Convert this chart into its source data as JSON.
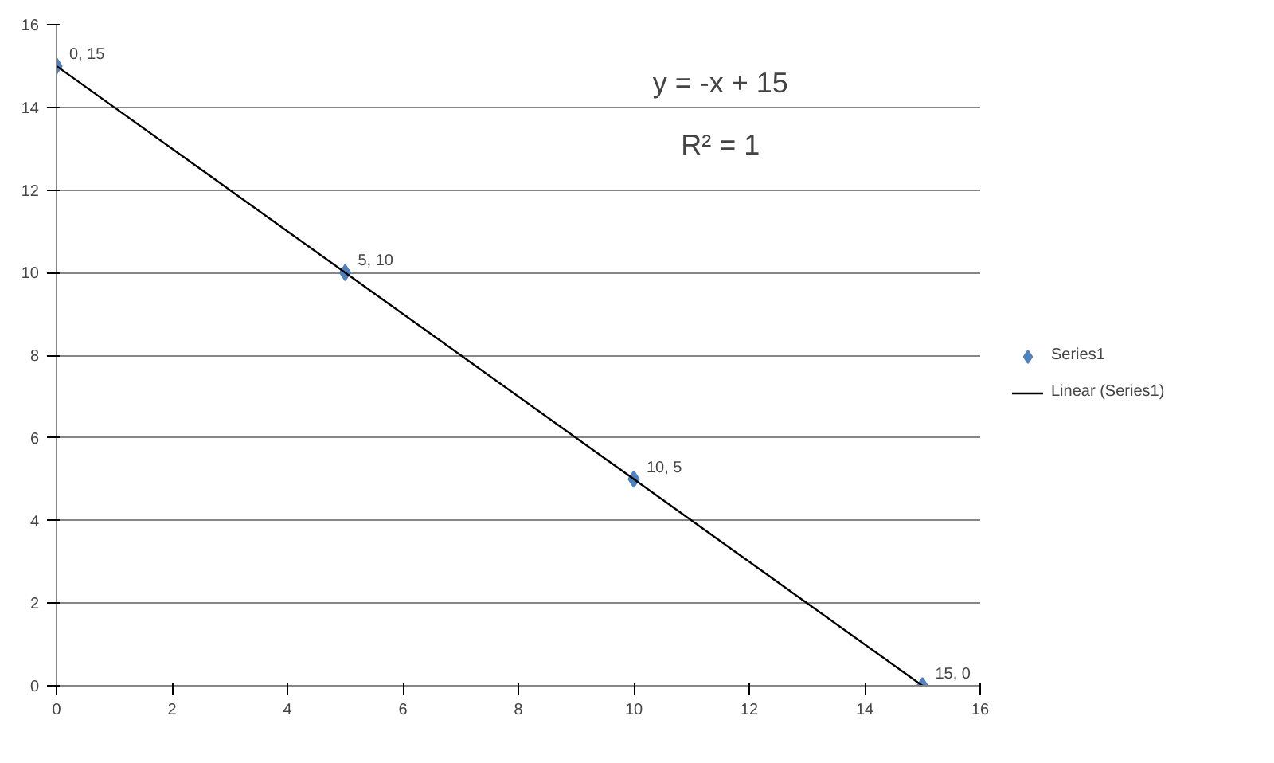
{
  "chart_data": {
    "type": "scatter",
    "series": [
      {
        "name": "Series1",
        "color": "#4f81bd",
        "marker": "diamond",
        "x": [
          0,
          5,
          10,
          15
        ],
        "values": [
          15,
          10,
          5,
          0
        ],
        "value_labels": [
          "0, 15",
          "5, 10",
          "10, 5",
          "15, 0"
        ]
      },
      {
        "name": "Linear (Series1)",
        "type": "line",
        "color": "#000000",
        "line_style": "solid",
        "x": [
          0,
          15
        ],
        "values": [
          15,
          0
        ]
      }
    ],
    "annotations": [
      "y = -x + 15",
      "R² = 1"
    ],
    "xlim": [
      0,
      16
    ],
    "ylim": [
      0,
      16
    ],
    "xticks": [
      0,
      2,
      4,
      6,
      8,
      10,
      12,
      14,
      16
    ],
    "yticks": [
      0,
      2,
      4,
      6,
      8,
      10,
      12,
      14,
      16
    ],
    "grid": "y",
    "legend": "right"
  }
}
